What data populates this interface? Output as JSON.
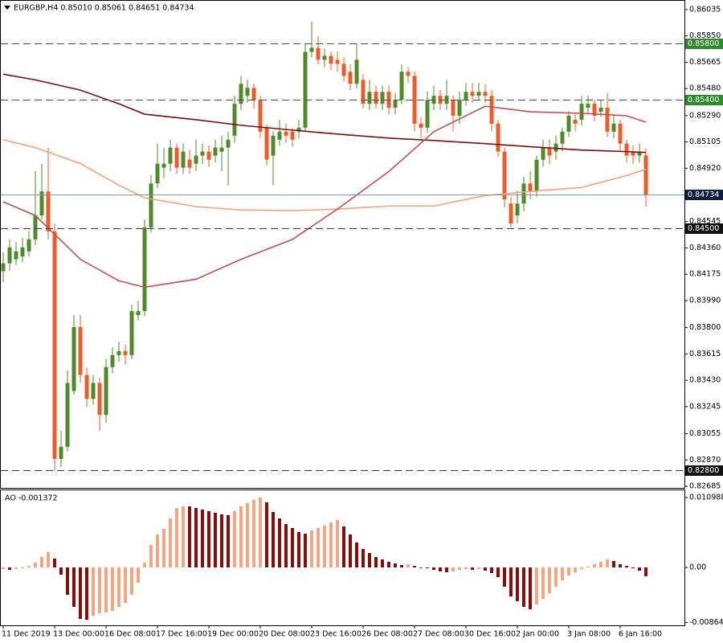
{
  "chart_data": [
    {
      "type": "candlestick",
      "title": "EURGBP,H4  0.85010 0.85061 0.84651 0.84734",
      "up_color": "#4f8a2b",
      "down_color": "#f05a28",
      "ylim": [
        0.82674,
        0.86091
      ],
      "yticks": [
        0.86035,
        {
          "value": 0.8585,
          "label": "0.85850"
        },
        0.85665,
        {
          "value": 0.8548,
          "label": "0.85480"
        },
        {
          "value": 0.8529,
          "label": "0.85290"
        },
        0.85105,
        {
          "value": 0.8492,
          "label": "0.84920"
        },
        0.84545,
        {
          "value": 0.8436,
          "label": "0.84360"
        },
        0.84175,
        {
          "value": 0.8399,
          "label": "0.83990"
        },
        {
          "value": 0.838,
          "label": "0.83800"
        },
        0.83615,
        {
          "value": 0.8343,
          "label": "0.83430"
        },
        0.83245,
        0.83055,
        {
          "value": 0.8287,
          "label": "0.82870"
        },
        0.82685
      ],
      "open": [
        0.84196,
        0.84252,
        0.8428,
        0.843,
        0.84336,
        0.8442,
        0.84588,
        0.84757,
        0.84476,
        0.82878,
        0.82963,
        0.83355,
        0.83804,
        0.83467,
        0.83299,
        0.83411,
        0.83187,
        0.83523,
        0.83607,
        0.83635,
        0.83607,
        0.83888,
        0.83916,
        0.84504,
        0.84813,
        0.84924,
        0.84952,
        0.85065,
        0.84924,
        0.8498,
        0.84952,
        0.85009,
        0.85037,
        0.85009,
        0.85037,
        0.85065,
        0.85149,
        0.85373,
        0.85429,
        0.85485,
        0.85401,
        0.85205,
        0.85009,
        0.85121,
        0.85177,
        0.85177,
        0.85177,
        0.85205,
        0.85738,
        0.85766,
        0.85682,
        0.8571,
        0.85682,
        0.85654,
        0.85598,
        0.85513,
        0.85541,
        0.85373,
        0.85457,
        0.85373,
        0.85457,
        0.85345,
        0.85401,
        0.85598,
        0.85569,
        0.85233,
        0.85205,
        0.85373,
        0.85429,
        0.85373,
        0.85401,
        0.85289,
        0.85401,
        0.85457,
        0.85429,
        0.85457,
        0.85429,
        0.85233,
        0.85037,
        0.84672,
        0.84588,
        0.84672,
        0.84813,
        0.84757,
        0.8498,
        0.85065,
        0.85037,
        0.85093,
        0.85177,
        0.85261,
        0.85261,
        0.85345,
        0.85373,
        0.85317,
        0.85345,
        0.85177,
        0.85233,
        0.85093,
        0.85037,
        0.85009,
        0.8501
      ],
      "high": [
        0.8433,
        0.8442,
        0.844,
        0.8443,
        0.8448,
        0.849,
        0.8495,
        0.85065,
        0.8453,
        0.83075,
        0.835,
        0.83888,
        0.83888,
        0.8352,
        0.83467,
        0.8345,
        0.8358,
        0.8366,
        0.837,
        0.8368,
        0.8396,
        0.8399,
        0.8456,
        0.8487,
        0.85093,
        0.85065,
        0.85121,
        0.85093,
        0.85093,
        0.8505,
        0.85121,
        0.85093,
        0.8508,
        0.85121,
        0.85149,
        0.85177,
        0.85429,
        0.85569,
        0.85541,
        0.85513,
        0.8543,
        0.8523,
        0.8518,
        0.85261,
        0.85233,
        0.85205,
        0.85261,
        0.85794,
        0.8595,
        0.8585,
        0.8576,
        0.8574,
        0.8574,
        0.857,
        0.8565,
        0.85794,
        0.8558,
        0.85541,
        0.855,
        0.855,
        0.855,
        0.8545,
        0.8565,
        0.8563,
        0.856,
        0.8528,
        0.8546,
        0.855,
        0.8547,
        0.85541,
        0.8543,
        0.85457,
        0.8552,
        0.8552,
        0.8552,
        0.8551,
        0.8547,
        0.8526,
        0.85065,
        0.8472,
        0.8476,
        0.8486,
        0.849,
        0.85009,
        0.85121,
        0.85121,
        0.85149,
        0.85205,
        0.8532,
        0.853,
        0.85429,
        0.8543,
        0.854,
        0.85401,
        0.8545,
        0.8529,
        0.8526,
        0.85121,
        0.8508,
        0.85093,
        0.85061
      ],
      "low": [
        0.8412,
        0.842,
        0.8424,
        0.8426,
        0.843,
        0.8438,
        0.8456,
        0.8442,
        0.82794,
        0.8282,
        0.8293,
        0.8333,
        0.83411,
        0.8324,
        0.8326,
        0.83075,
        0.8313,
        0.8348,
        0.8356,
        0.8354,
        0.8358,
        0.8385,
        0.8388,
        0.8447,
        0.8478,
        0.8485,
        0.849,
        0.8488,
        0.8488,
        0.8488,
        0.849,
        0.8495,
        0.8493,
        0.8496,
        0.849,
        0.848,
        0.851,
        0.8533,
        0.8538,
        0.8534,
        0.8513,
        0.8494,
        0.848,
        0.8508,
        0.851,
        0.8507,
        0.8513,
        0.8518,
        0.857,
        0.8565,
        0.8563,
        0.8561,
        0.856,
        0.8553,
        0.8547,
        0.8548,
        0.8534,
        0.8533,
        0.8534,
        0.8533,
        0.853,
        0.853,
        0.8537,
        0.8552,
        0.8518,
        0.8513,
        0.8517,
        0.8533,
        0.8533,
        0.8533,
        0.8518,
        0.85233,
        0.8536,
        0.8538,
        0.854,
        0.8538,
        0.8518,
        0.85,
        0.84644,
        0.84504,
        0.84532,
        0.8462,
        0.847,
        0.8472,
        0.8493,
        0.8495,
        0.8498,
        0.8504,
        0.8514,
        0.8518,
        0.8522,
        0.853,
        0.8525,
        0.8528,
        0.8514,
        0.8513,
        0.8504,
        0.8496,
        0.8495,
        0.8496,
        0.84651
      ],
      "close": [
        0.84252,
        0.84364,
        0.84336,
        0.84364,
        0.8442,
        0.84588,
        0.84757,
        0.84476,
        0.82878,
        0.82963,
        0.83411,
        0.83804,
        0.83467,
        0.83299,
        0.83411,
        0.83187,
        0.83523,
        0.83607,
        0.83635,
        0.83607,
        0.83916,
        0.83916,
        0.84504,
        0.84813,
        0.84952,
        0.84952,
        0.85065,
        0.84924,
        0.85037,
        0.84924,
        0.85009,
        0.85037,
        0.8498,
        0.85065,
        0.85065,
        0.85121,
        0.85373,
        0.85513,
        0.85485,
        0.85401,
        0.85177,
        0.8498,
        0.85149,
        0.85177,
        0.85149,
        0.85121,
        0.85205,
        0.85738,
        0.85766,
        0.85682,
        0.8571,
        0.85654,
        0.85654,
        0.85569,
        0.85513,
        0.85682,
        0.85373,
        0.85457,
        0.85373,
        0.85457,
        0.85345,
        0.85401,
        0.85598,
        0.85569,
        0.85233,
        0.85205,
        0.85401,
        0.85429,
        0.85373,
        0.85429,
        0.85289,
        0.85401,
        0.85457,
        0.85429,
        0.85457,
        0.85429,
        0.85233,
        0.85037,
        0.84701,
        0.84532,
        0.84672,
        0.84813,
        0.84757,
        0.8498,
        0.85065,
        0.85009,
        0.85093,
        0.85177,
        0.85289,
        0.85233,
        0.85373,
        0.85373,
        0.85289,
        0.85345,
        0.85177,
        0.85233,
        0.85093,
        0.85009,
        0.85009,
        0.85037,
        0.84734
      ],
      "lines": [
        {
          "color": "#7a0f0f",
          "x": [
            0,
            5,
            12,
            18,
            22,
            30,
            37,
            45,
            52,
            60,
            67,
            75,
            82,
            90,
            97,
            100
          ],
          "values": [
            0.85581,
            0.85541,
            0.85469,
            0.85373,
            0.853,
            0.85261,
            0.85222,
            0.85188,
            0.8516,
            0.85132,
            0.85115,
            0.85093,
            0.85071,
            0.85048,
            0.85037,
            0.85031
          ]
        },
        {
          "color": "#f4a27a",
          "x": [
            0,
            5,
            12,
            18,
            22,
            30,
            37,
            45,
            52,
            60,
            67,
            75,
            82,
            90,
            97,
            100
          ],
          "values": [
            0.85121,
            0.85065,
            0.84953,
            0.84801,
            0.84712,
            0.8465,
            0.84627,
            0.84622,
            0.84633,
            0.84655,
            0.84655,
            0.84728,
            0.84757,
            0.84785,
            0.84869,
            0.84913
          ]
        },
        {
          "color": "#c25050",
          "x": [
            0,
            5,
            12,
            18,
            22,
            30,
            37,
            45,
            52,
            60,
            67,
            75,
            82,
            90,
            97,
            100
          ],
          "values": [
            0.84684,
            0.84588,
            0.8428,
            0.84129,
            0.84084,
            0.8414,
            0.8428,
            0.8442,
            0.84633,
            0.84897,
            0.85177,
            0.85356,
            0.85317,
            0.85306,
            0.85289,
            0.85244
          ]
        }
      ],
      "levels": [
        {
          "value": 0.858,
          "label": "0.85800",
          "color": "#3c5e3c",
          "dash": true,
          "label_color": "#2f8a2f"
        },
        {
          "value": 0.854,
          "label": "0.85400",
          "color": "#3c5e3c",
          "dash": true,
          "label_color": "#2f8a2f"
        },
        {
          "value": 0.84734,
          "color": "#8796a8",
          "dash": false,
          "label_color": "#0f1e3c"
        },
        {
          "value": 0.845,
          "label": "0.84500",
          "color": "#33404a",
          "dash": true,
          "label_color": "#111111"
        },
        {
          "value": 0.828,
          "label": "0.82800",
          "color": "#33404a",
          "dash": true,
          "label_color": "#111111"
        }
      ]
    },
    {
      "type": "bar",
      "title": "AO -0.001372",
      "up_color": "#f4a582",
      "down_color": "#8b0a0a",
      "ylim": [
        -0.00909,
        0.01212
      ],
      "yticks": [
        0.010988,
        {
          "value": 0,
          "label": "0.00"
        },
        -0.008648
      ],
      "categories": [
        "11 Dec 2019",
        null,
        null,
        null,
        null,
        null,
        null,
        null,
        "13 Dec 00:00",
        null,
        null,
        null,
        null,
        null,
        null,
        null,
        "16 Dec 08:00",
        null,
        null,
        null,
        null,
        null,
        null,
        null,
        "17 Dec 16:00",
        null,
        null,
        null,
        null,
        null,
        null,
        null,
        "19 Dec 00:00",
        null,
        null,
        null,
        null,
        null,
        null,
        null,
        "20 Dec 08:00",
        null,
        null,
        null,
        null,
        null,
        null,
        null,
        "23 Dec 16:00",
        null,
        null,
        null,
        null,
        null,
        null,
        null,
        "26 Dec 08:00",
        null,
        null,
        null,
        null,
        null,
        null,
        null,
        "27 Dec 08:00",
        null,
        null,
        null,
        null,
        null,
        null,
        null,
        "30 Dec 16:00",
        null,
        null,
        null,
        null,
        null,
        null,
        null,
        "2 Jan 00:00",
        null,
        null,
        null,
        null,
        null,
        null,
        null,
        "3 Jan 08:00",
        null,
        null,
        null,
        null,
        null,
        null,
        null,
        "6 Jan 16:00",
        null,
        null,
        null,
        null
      ],
      "values": [
        -0.00025,
        -0.00038,
        -0.00025,
        -0.00013,
        0.00025,
        0.00076,
        0.00164,
        0.0024,
        0.00139,
        -0.00114,
        -0.00429,
        -0.00619,
        -0.00808,
        -0.00821,
        -0.00758,
        -0.0072,
        -0.00707,
        -0.00682,
        -0.00619,
        -0.00556,
        -0.00429,
        -0.0024,
        0.00076,
        0.00354,
        0.00518,
        0.00606,
        0.0077,
        0.00935,
        0.0096,
        0.00958,
        0.00935,
        0.00909,
        0.00884,
        0.00859,
        0.00834,
        0.00821,
        0.00884,
        0.0096,
        0.0101,
        0.01061,
        0.01099,
        0.01023,
        0.00871,
        0.0077,
        0.00682,
        0.00619,
        0.00556,
        0.0053,
        0.00581,
        0.00619,
        0.00657,
        0.00707,
        0.00745,
        0.00644,
        0.00518,
        0.00392,
        0.0029,
        0.00227,
        0.00164,
        0.00126,
        0.00088,
        0.00063,
        0.00038,
        0.00051,
        0.00025,
        -5e-05,
        -0.00013,
        -0.00038,
        -0.00063,
        -0.00076,
        -0.00063,
        -0.00038,
        -0.00025,
        -0.00038,
        -0.00025,
        -0.00051,
        -0.00088,
        -0.00152,
        -0.00303,
        -0.00455,
        -0.0053,
        -0.00619,
        -0.00657,
        -0.00581,
        -0.00493,
        -0.00404,
        -0.00303,
        -0.00202,
        -0.00126,
        -0.00076,
        -0.00025,
        0.00013,
        0.00051,
        0.00088,
        0.00126,
        0.00101,
        0.00051,
        0.00025,
        -0.00013,
        -0.00051,
        -0.001372
      ]
    }
  ]
}
